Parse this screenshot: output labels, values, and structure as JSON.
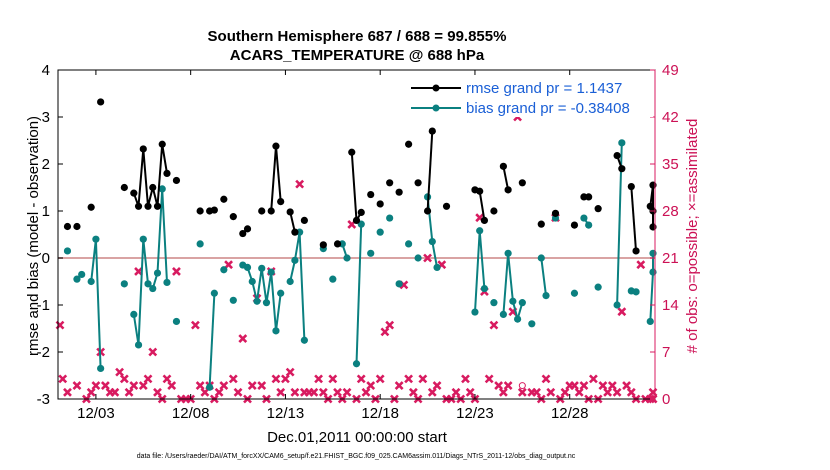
{
  "chart_data": {
    "type": "line",
    "title": "Southern Hemisphere 687 / 688 = 99.855%",
    "subtitle": "ACARS_TEMPERATURE @ 688 hPa",
    "xlabel": "Dec.01,2011 00:00:00 start",
    "ylabel": "rmse and bias (model - observation)",
    "ylabel_right": "# of obs: o=possible; ×=assimilated",
    "footnote": "data file: /Users/raeder/DAI/ATM_forcXX/CAM6_setup/f.e21.FHIST_BGC.f09_025.CAM6assim.011/Diags_NTrS_2011-12/obs_diag_output.nc",
    "xlim": [
      1,
      32.5
    ],
    "ylim": [
      -3,
      4
    ],
    "ylim_right": [
      0,
      49
    ],
    "x_ticks": [
      3,
      8,
      13,
      18,
      23,
      28
    ],
    "x_tick_labels": [
      "12/03",
      "12/08",
      "12/13",
      "12/18",
      "12/23",
      "12/28"
    ],
    "y_ticks": [
      -3,
      -2,
      -1,
      0,
      1,
      2,
      3,
      4
    ],
    "y_tick_labels": [
      "-3",
      "-2",
      "-1",
      "0",
      "1",
      "2",
      "3",
      "4"
    ],
    "y_ticks_right": [
      0,
      7,
      14,
      21,
      28,
      35,
      42,
      49
    ],
    "y_tick_labels_right": [
      "0",
      "7",
      "14",
      "21",
      "28",
      "35",
      "42",
      "49"
    ],
    "legend_position": "top-right",
    "colors": {
      "rmse": "#000000",
      "bias": "#0b8080",
      "obs": "#d81b60",
      "zero_line": "#d9a3a3"
    },
    "series": [
      {
        "name": "rmse grand pr = 1.1437",
        "values": [
          [
            1.5,
            0.67
          ],
          [
            2.0,
            0.67
          ],
          [
            2.75,
            1.08
          ],
          [
            3.25,
            3.32
          ],
          [
            4.5,
            1.5
          ],
          [
            5.0,
            1.38
          ],
          [
            5.25,
            1.1
          ],
          [
            5.5,
            2.32
          ],
          [
            5.75,
            1.1
          ],
          [
            6.0,
            1.5
          ],
          [
            6.25,
            1.1
          ],
          [
            6.5,
            2.42
          ],
          [
            6.75,
            1.8
          ],
          [
            7.25,
            1.65
          ],
          [
            8.5,
            1.0
          ],
          [
            9.0,
            1.0
          ],
          [
            9.25,
            1.02
          ],
          [
            9.75,
            1.25
          ],
          [
            10.25,
            0.88
          ],
          [
            10.75,
            0.52
          ],
          [
            11.0,
            0.62
          ],
          [
            11.75,
            1.0
          ],
          [
            12.25,
            1.0
          ],
          [
            12.5,
            2.38
          ],
          [
            12.75,
            1.2
          ],
          [
            13.25,
            0.98
          ],
          [
            13.5,
            0.55
          ],
          [
            14.0,
            0.8
          ],
          [
            15.0,
            0.28
          ],
          [
            15.75,
            0.3
          ],
          [
            16.5,
            2.25
          ],
          [
            16.75,
            0.8
          ],
          [
            17.0,
            0.97
          ],
          [
            17.5,
            1.35
          ],
          [
            18.0,
            1.15
          ],
          [
            18.5,
            1.6
          ],
          [
            19.0,
            1.4
          ],
          [
            19.5,
            2.42
          ],
          [
            20.0,
            1.6
          ],
          [
            20.5,
            1.0
          ],
          [
            20.75,
            2.7
          ],
          [
            21.5,
            1.1
          ],
          [
            23.0,
            1.45
          ],
          [
            23.25,
            1.42
          ],
          [
            23.5,
            0.8
          ],
          [
            24.0,
            1.0
          ],
          [
            24.5,
            1.95
          ],
          [
            24.75,
            1.45
          ],
          [
            25.5,
            1.6
          ],
          [
            26.5,
            0.72
          ],
          [
            27.25,
            0.95
          ],
          [
            28.25,
            0.7
          ],
          [
            28.75,
            1.3
          ],
          [
            29.0,
            1.3
          ],
          [
            29.5,
            1.05
          ],
          [
            30.5,
            2.18
          ],
          [
            30.75,
            1.9
          ],
          [
            31.25,
            1.52
          ],
          [
            31.5,
            0.15
          ],
          [
            32.25,
            1.1
          ],
          [
            32.5,
            1.55
          ],
          [
            32.75,
            1.0
          ],
          [
            33.0,
            0.66
          ]
        ]
      },
      {
        "name": "bias grand pr = -0.38408",
        "values": [
          [
            1.5,
            0.15
          ],
          [
            2.0,
            -0.45
          ],
          [
            2.25,
            -0.35
          ],
          [
            2.75,
            -0.5
          ],
          [
            3.0,
            0.4
          ],
          [
            3.25,
            -2.35
          ],
          [
            4.5,
            -0.55
          ],
          [
            5.0,
            -1.2
          ],
          [
            5.25,
            -1.85
          ],
          [
            5.5,
            0.4
          ],
          [
            5.75,
            -0.55
          ],
          [
            6.0,
            -0.65
          ],
          [
            6.25,
            -0.32
          ],
          [
            6.5,
            1.47
          ],
          [
            6.75,
            -0.52
          ],
          [
            7.25,
            -1.35
          ],
          [
            8.5,
            0.3
          ],
          [
            9.0,
            -2.75
          ],
          [
            9.25,
            -0.75
          ],
          [
            9.75,
            -0.25
          ],
          [
            10.25,
            -0.9
          ],
          [
            10.75,
            -0.15
          ],
          [
            11.0,
            -0.2
          ],
          [
            11.25,
            -0.5
          ],
          [
            11.5,
            -0.92
          ],
          [
            11.75,
            -0.22
          ],
          [
            12.0,
            -0.95
          ],
          [
            12.25,
            -0.3
          ],
          [
            12.5,
            -1.55
          ],
          [
            12.75,
            -0.75
          ],
          [
            13.25,
            -0.5
          ],
          [
            13.5,
            -0.05
          ],
          [
            13.75,
            0.55
          ],
          [
            14.0,
            -1.75
          ],
          [
            15.0,
            0.2
          ],
          [
            15.5,
            -0.45
          ],
          [
            16.0,
            0.3
          ],
          [
            16.25,
            0.0
          ],
          [
            16.75,
            -2.25
          ],
          [
            17.0,
            0.72
          ],
          [
            17.5,
            0.1
          ],
          [
            18.0,
            0.55
          ],
          [
            18.5,
            0.85
          ],
          [
            19.0,
            -0.55
          ],
          [
            19.5,
            0.3
          ],
          [
            20.0,
            0.0
          ],
          [
            20.5,
            1.3
          ],
          [
            20.75,
            0.35
          ],
          [
            21.0,
            -0.2
          ],
          [
            23.0,
            -1.15
          ],
          [
            23.25,
            0.58
          ],
          [
            23.5,
            -0.65
          ],
          [
            24.0,
            -0.95
          ],
          [
            24.5,
            -1.2
          ],
          [
            24.75,
            0.1
          ],
          [
            25.0,
            -0.92
          ],
          [
            25.25,
            -1.3
          ],
          [
            25.5,
            -0.95
          ],
          [
            26.0,
            -1.4
          ],
          [
            26.5,
            0.0
          ],
          [
            26.75,
            -0.8
          ],
          [
            27.25,
            0.85
          ],
          [
            28.25,
            -0.75
          ],
          [
            28.75,
            0.85
          ],
          [
            29.0,
            0.7
          ],
          [
            29.5,
            -0.62
          ],
          [
            30.5,
            -1.0
          ],
          [
            30.75,
            2.45
          ],
          [
            31.25,
            -0.7
          ],
          [
            31.5,
            -0.72
          ],
          [
            32.25,
            -1.35
          ],
          [
            32.5,
            -0.3
          ],
          [
            32.75,
            0.1
          ]
        ]
      },
      {
        "name": "# of obs assimilated",
        "values": [
          [
            1.0,
            11
          ],
          [
            1.25,
            3
          ],
          [
            1.5,
            1
          ],
          [
            2.0,
            2
          ],
          [
            2.5,
            0
          ],
          [
            2.75,
            1
          ],
          [
            3.0,
            2
          ],
          [
            3.25,
            7
          ],
          [
            3.5,
            2
          ],
          [
            3.75,
            1
          ],
          [
            4.0,
            1
          ],
          [
            4.25,
            4
          ],
          [
            4.5,
            3
          ],
          [
            4.75,
            1
          ],
          [
            5.0,
            2
          ],
          [
            5.25,
            19
          ],
          [
            5.5,
            2
          ],
          [
            5.75,
            3
          ],
          [
            6.0,
            7
          ],
          [
            6.25,
            1
          ],
          [
            6.5,
            0
          ],
          [
            6.75,
            3
          ],
          [
            7.0,
            2
          ],
          [
            7.25,
            19
          ],
          [
            7.5,
            0
          ],
          [
            7.75,
            0
          ],
          [
            8.0,
            0
          ],
          [
            8.25,
            11
          ],
          [
            8.5,
            2
          ],
          [
            8.75,
            1
          ],
          [
            9.0,
            2
          ],
          [
            9.25,
            0
          ],
          [
            9.5,
            1
          ],
          [
            9.75,
            2
          ],
          [
            10.0,
            20
          ],
          [
            10.25,
            3
          ],
          [
            10.5,
            1
          ],
          [
            10.75,
            9
          ],
          [
            11.0,
            0
          ],
          [
            11.25,
            2
          ],
          [
            11.5,
            15
          ],
          [
            11.75,
            2
          ],
          [
            12.0,
            0
          ],
          [
            12.25,
            19
          ],
          [
            12.5,
            3
          ],
          [
            12.75,
            1
          ],
          [
            13.0,
            3
          ],
          [
            13.25,
            4
          ],
          [
            13.5,
            1
          ],
          [
            13.75,
            32
          ],
          [
            14.0,
            1
          ],
          [
            14.25,
            1
          ],
          [
            14.5,
            1
          ],
          [
            14.75,
            3
          ],
          [
            15.0,
            1
          ],
          [
            15.25,
            0
          ],
          [
            15.5,
            3
          ],
          [
            15.75,
            1
          ],
          [
            16.0,
            0
          ],
          [
            16.25,
            1
          ],
          [
            16.5,
            26
          ],
          [
            16.75,
            0
          ],
          [
            17.0,
            3
          ],
          [
            17.25,
            1
          ],
          [
            17.5,
            2
          ],
          [
            17.75,
            0
          ],
          [
            18.0,
            3
          ],
          [
            18.25,
            10
          ],
          [
            18.5,
            11
          ],
          [
            18.75,
            0
          ],
          [
            19.0,
            2
          ],
          [
            19.25,
            17
          ],
          [
            19.5,
            3
          ],
          [
            19.75,
            1
          ],
          [
            20.0,
            0
          ],
          [
            20.25,
            3
          ],
          [
            20.5,
            21
          ],
          [
            20.75,
            1
          ],
          [
            21.0,
            2
          ],
          [
            21.25,
            20
          ],
          [
            21.5,
            0
          ],
          [
            21.75,
            0
          ],
          [
            22.0,
            1
          ],
          [
            22.25,
            0
          ],
          [
            22.5,
            3
          ],
          [
            22.75,
            1
          ],
          [
            23.0,
            0
          ],
          [
            23.25,
            27
          ],
          [
            23.5,
            16
          ],
          [
            23.75,
            3
          ],
          [
            24.0,
            11
          ],
          [
            24.25,
            2
          ],
          [
            24.5,
            1
          ],
          [
            24.75,
            2
          ],
          [
            25.0,
            13
          ],
          [
            25.25,
            42
          ],
          [
            25.5,
            1
          ],
          [
            26.0,
            1
          ],
          [
            26.25,
            1
          ],
          [
            26.5,
            0
          ],
          [
            26.75,
            3
          ],
          [
            27.0,
            1
          ],
          [
            27.25,
            27
          ],
          [
            27.5,
            0
          ],
          [
            27.75,
            1
          ],
          [
            28.0,
            2
          ],
          [
            28.25,
            2
          ],
          [
            28.5,
            1
          ],
          [
            28.75,
            2
          ],
          [
            29.0,
            0
          ],
          [
            29.25,
            3
          ],
          [
            29.5,
            0
          ],
          [
            29.75,
            2
          ],
          [
            30.0,
            1
          ],
          [
            30.25,
            2
          ],
          [
            30.5,
            1
          ],
          [
            30.75,
            13
          ],
          [
            31.0,
            2
          ],
          [
            31.25,
            1
          ],
          [
            31.5,
            0
          ],
          [
            31.75,
            20
          ],
          [
            32.0,
            0
          ],
          [
            32.25,
            0
          ],
          [
            32.5,
            1
          ],
          [
            32.75,
            0
          ],
          [
            33.0,
            0
          ]
        ]
      }
    ],
    "possible_obs_highlight": [
      25.5,
      2
    ]
  }
}
